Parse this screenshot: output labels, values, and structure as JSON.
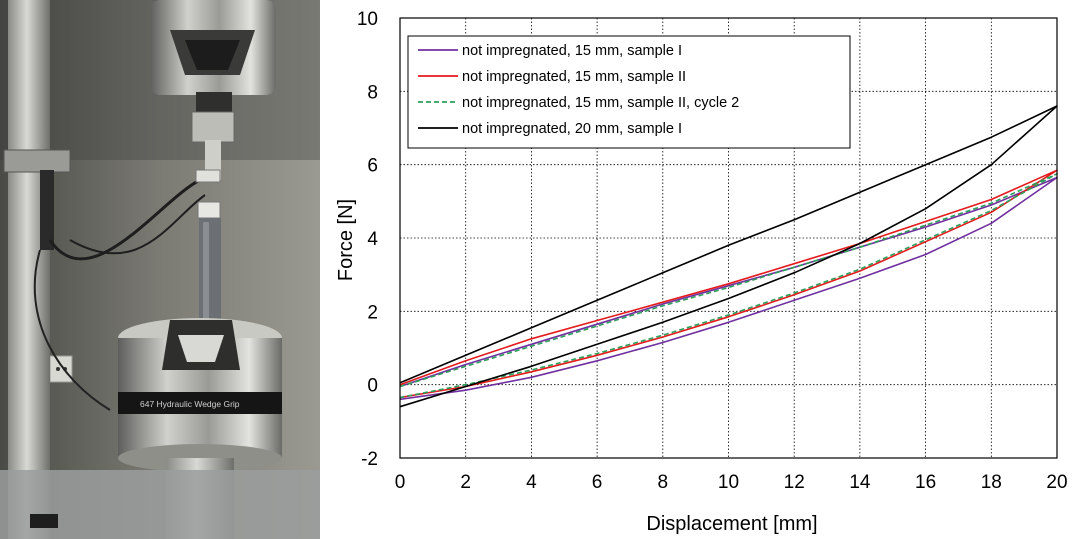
{
  "photo": {
    "grip_label": "647 Hydraulic Wedge Grip"
  },
  "chart_data": {
    "type": "line",
    "xlabel": "Displacement [mm]",
    "ylabel": "Force [N]",
    "xlim": [
      0,
      20
    ],
    "ylim": [
      -2,
      10
    ],
    "xticks": [
      0,
      2,
      4,
      6,
      8,
      10,
      12,
      14,
      16,
      18,
      20
    ],
    "yticks": [
      -2,
      0,
      2,
      4,
      6,
      8,
      10
    ],
    "grid": true,
    "legend_position": "top-left",
    "series": [
      {
        "name": "not impregnated, 15 mm, sample I",
        "color": "#7030a0",
        "dash": "solid",
        "x": [
          0,
          2,
          4,
          6,
          8,
          10,
          12,
          14,
          16,
          18,
          20,
          18,
          16,
          14,
          12,
          10,
          8,
          6,
          4,
          2,
          0
        ],
        "y": [
          -0.05,
          0.55,
          1.1,
          1.65,
          2.2,
          2.7,
          3.2,
          3.75,
          4.3,
          4.9,
          5.65,
          4.4,
          3.55,
          2.9,
          2.3,
          1.7,
          1.15,
          0.65,
          0.2,
          -0.15,
          -0.4
        ]
      },
      {
        "name": "not impregnated, 15 mm, sample II",
        "color": "#e41a1c",
        "dash": "solid",
        "x": [
          0,
          2,
          4,
          6,
          8,
          10,
          12,
          14,
          16,
          18,
          20,
          18,
          16,
          14,
          12,
          10,
          8,
          6,
          4,
          2,
          0
        ],
        "y": [
          0.0,
          0.65,
          1.25,
          1.75,
          2.25,
          2.75,
          3.3,
          3.85,
          4.45,
          5.05,
          5.85,
          4.7,
          3.9,
          3.1,
          2.45,
          1.85,
          1.3,
          0.8,
          0.35,
          -0.05,
          -0.35
        ]
      },
      {
        "name": "not impregnated, 15 mm, sample II, cycle 2",
        "color": "#2ca05a",
        "dash": "dashed",
        "x": [
          0,
          2,
          4,
          6,
          8,
          10,
          12,
          14,
          16,
          18,
          20,
          18,
          16,
          14,
          12,
          10,
          8,
          6,
          4,
          2,
          0
        ],
        "y": [
          -0.05,
          0.5,
          1.05,
          1.6,
          2.15,
          2.65,
          3.2,
          3.75,
          4.35,
          4.95,
          5.75,
          4.75,
          3.95,
          3.15,
          2.5,
          1.9,
          1.35,
          0.85,
          0.4,
          0.0,
          -0.35
        ]
      },
      {
        "name": "not impregnated, 20 mm, sample I",
        "color": "#000000",
        "dash": "solid",
        "x": [
          0,
          2,
          4,
          6,
          8,
          10,
          12,
          14,
          16,
          18,
          20,
          18,
          16,
          14,
          12,
          10,
          8,
          6,
          4,
          2,
          0
        ],
        "y": [
          0.05,
          0.8,
          1.55,
          2.3,
          3.05,
          3.8,
          4.5,
          5.25,
          6.0,
          6.75,
          7.6,
          6.0,
          4.8,
          3.85,
          3.05,
          2.35,
          1.7,
          1.1,
          0.5,
          -0.05,
          -0.6
        ]
      }
    ]
  }
}
